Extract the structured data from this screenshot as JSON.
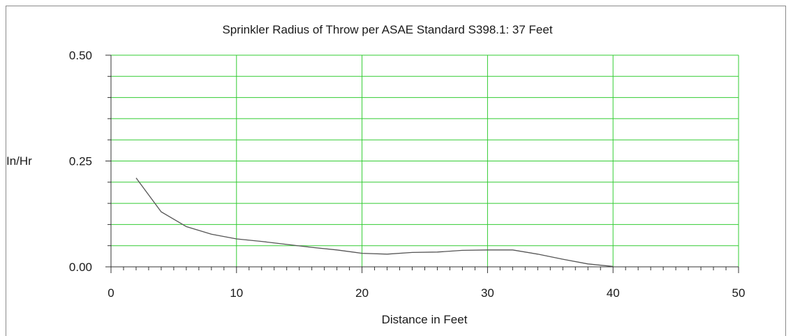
{
  "chart_data": {
    "type": "line",
    "title": "Sprinkler Radius of Throw per ASAE Standard S398.1: 37 Feet",
    "xlabel": "Distance in Feet",
    "ylabel": "In/Hr",
    "xlim": [
      0,
      50
    ],
    "ylim": [
      0,
      0.5
    ],
    "x_ticks": [
      0,
      10,
      20,
      30,
      40,
      50
    ],
    "x_tick_labels": [
      "0",
      "10",
      "20",
      "30",
      "40",
      "50"
    ],
    "y_ticks": [
      0,
      0.25,
      0.5
    ],
    "y_tick_labels": [
      "0.00",
      "0.25",
      "0.50"
    ],
    "grid": true,
    "colors": {
      "grid": "#33cc33",
      "line": "#555555",
      "axis": "#333333"
    },
    "series": [
      {
        "x": [
          2,
          4,
          6,
          8,
          10,
          12,
          14,
          16,
          18,
          20,
          22,
          24,
          26,
          28,
          30,
          32,
          34,
          36,
          38,
          40
        ],
        "y": [
          0.21,
          0.13,
          0.095,
          0.077,
          0.066,
          0.06,
          0.053,
          0.046,
          0.04,
          0.032,
          0.03,
          0.034,
          0.035,
          0.039,
          0.04,
          0.04,
          0.03,
          0.018,
          0.007,
          0.001
        ]
      }
    ]
  }
}
